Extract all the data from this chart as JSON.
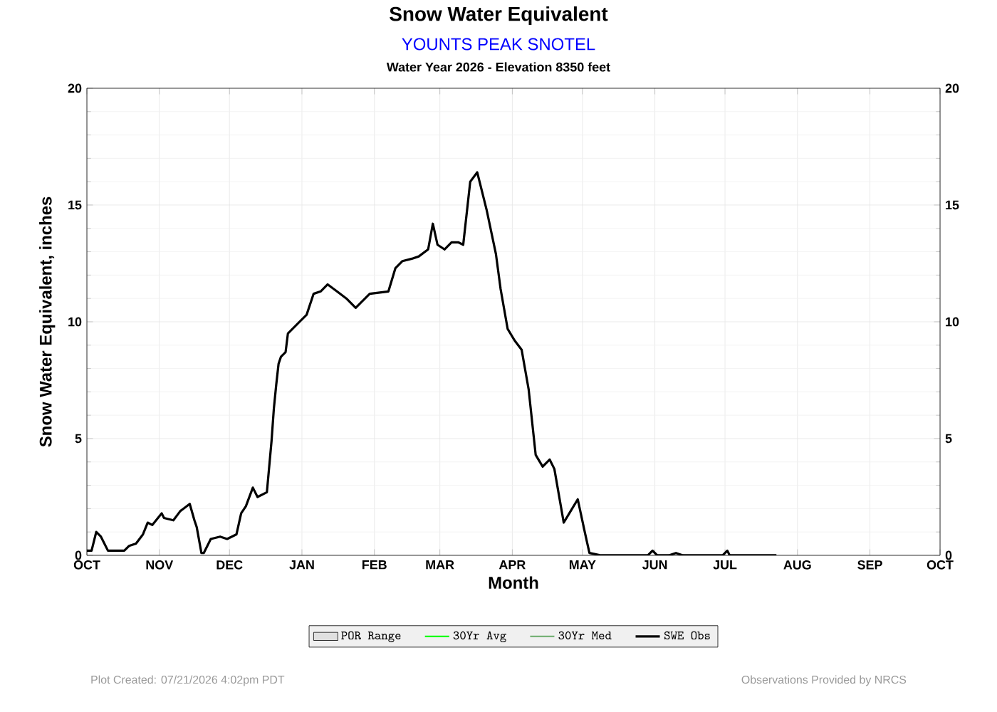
{
  "chart_data": {
    "type": "line",
    "title": "Snow Water Equivalent",
    "subtitle": "YOUNTS PEAK SNOTEL",
    "annotations": [
      "Water Year 2026 -  Elevation 8350 feet",
      "Plot Created: 07/21/2026 4:02pm PDT",
      "Observations Provided by NRCS"
    ],
    "xlabel": "Month",
    "ylabel": "Snow Water Equivalent, inches",
    "xlim": [
      "2025-10-01",
      "2026-10-01"
    ],
    "xticks": [
      {
        "value": "2025-10-01",
        "label": "OCT"
      },
      {
        "value": "2025-11-01",
        "label": "NOV"
      },
      {
        "value": "2025-12-01",
        "label": "DEC"
      },
      {
        "value": "2026-01-01",
        "label": "JAN"
      },
      {
        "value": "2026-02-01",
        "label": "FEB"
      },
      {
        "value": "2026-03-01",
        "label": "MAR"
      },
      {
        "value": "2026-04-01",
        "label": "APR"
      },
      {
        "value": "2026-05-01",
        "label": "MAY"
      },
      {
        "value": "2026-06-01",
        "label": "JUN"
      },
      {
        "value": "2026-07-01",
        "label": "JUL"
      },
      {
        "value": "2026-08-01",
        "label": "AUG"
      },
      {
        "value": "2026-09-01",
        "label": "SEP"
      },
      {
        "value": "2026-10-01",
        "label": "OCT"
      }
    ],
    "ylim": [
      0,
      20
    ],
    "yticks": [
      0,
      5,
      10,
      15,
      20
    ],
    "y2lim": [
      0,
      20
    ],
    "y2ticks": [
      0,
      5,
      10,
      15,
      20
    ],
    "grid": true,
    "legend": "bottom",
    "x": [
      "2025-10-01",
      "2025-10-03",
      "2025-10-05",
      "2025-10-07",
      "2025-10-10",
      "2025-10-17",
      "2025-10-19",
      "2025-10-22",
      "2025-10-25",
      "2025-10-27",
      "2025-10-29",
      "2025-11-02",
      "2025-11-03",
      "2025-11-07",
      "2025-11-10",
      "2025-11-14",
      "2025-11-16",
      "2025-11-17",
      "2025-11-19",
      "2025-11-20",
      "2025-11-23",
      "2025-11-27",
      "2025-11-30",
      "2025-12-04",
      "2025-12-06",
      "2025-12-08",
      "2025-12-11",
      "2025-12-13",
      "2025-12-17",
      "2025-12-19",
      "2025-12-20",
      "2025-12-21",
      "2025-12-22",
      "2025-12-23",
      "2025-12-25",
      "2025-12-26",
      "2025-12-31",
      "2026-01-03",
      "2026-01-06",
      "2026-01-09",
      "2026-01-12",
      "2026-01-16",
      "2026-01-20",
      "2026-01-24",
      "2026-01-30",
      "2026-02-07",
      "2026-02-10",
      "2026-02-13",
      "2026-02-17",
      "2026-02-20",
      "2026-02-24",
      "2026-02-26",
      "2026-02-28",
      "2026-03-03",
      "2026-03-06",
      "2026-03-09",
      "2026-03-11",
      "2026-03-14",
      "2026-03-17",
      "2026-03-21",
      "2026-03-25",
      "2026-03-27",
      "2026-03-30",
      "2026-04-02",
      "2026-04-05",
      "2026-04-08",
      "2026-04-11",
      "2026-04-14",
      "2026-04-17",
      "2026-04-19",
      "2026-04-23",
      "2026-04-26",
      "2026-04-29",
      "2026-05-02",
      "2026-05-04",
      "2026-05-09",
      "2026-05-14",
      "2026-05-29",
      "2026-05-31",
      "2026-06-02",
      "2026-06-07",
      "2026-06-10",
      "2026-06-13",
      "2026-06-30",
      "2026-07-02",
      "2026-07-03",
      "2026-07-23"
    ],
    "series": [
      {
        "name": "POR Range",
        "type": "area",
        "color": "#e0e0e0",
        "values": [
          null,
          null,
          null,
          null,
          null,
          null,
          null,
          null,
          null,
          null,
          null,
          null,
          null,
          null,
          null,
          null,
          null,
          null,
          null,
          null,
          null,
          null,
          null,
          null,
          null,
          null,
          null,
          null,
          null,
          null,
          null,
          null,
          null,
          null,
          null,
          null,
          null,
          null,
          null,
          null,
          null,
          null,
          null,
          null,
          null,
          null,
          null,
          null,
          null,
          null,
          null,
          null,
          null,
          null,
          null,
          null,
          null,
          null,
          null,
          null,
          null,
          null,
          null,
          null,
          null,
          null,
          null,
          null,
          null,
          null,
          null,
          null,
          null,
          null,
          null,
          null,
          null,
          null,
          null,
          null,
          null,
          null,
          null,
          null,
          null,
          null,
          null
        ]
      },
      {
        "name": "30Yr Avg",
        "type": "line",
        "color": "#00ff00",
        "values": [
          null,
          null,
          null,
          null,
          null,
          null,
          null,
          null,
          null,
          null,
          null,
          null,
          null,
          null,
          null,
          null,
          null,
          null,
          null,
          null,
          null,
          null,
          null,
          null,
          null,
          null,
          null,
          null,
          null,
          null,
          null,
          null,
          null,
          null,
          null,
          null,
          null,
          null,
          null,
          null,
          null,
          null,
          null,
          null,
          null,
          null,
          null,
          null,
          null,
          null,
          null,
          null,
          null,
          null,
          null,
          null,
          null,
          null,
          null,
          null,
          null,
          null,
          null,
          null,
          null,
          null,
          null,
          null,
          null,
          null,
          null,
          null,
          null,
          null,
          null,
          null,
          null,
          null,
          null,
          null,
          null,
          null,
          null,
          null,
          null,
          null,
          null
        ]
      },
      {
        "name": "30Yr Med",
        "type": "line",
        "color": "#77b277",
        "values": [
          null,
          null,
          null,
          null,
          null,
          null,
          null,
          null,
          null,
          null,
          null,
          null,
          null,
          null,
          null,
          null,
          null,
          null,
          null,
          null,
          null,
          null,
          null,
          null,
          null,
          null,
          null,
          null,
          null,
          null,
          null,
          null,
          null,
          null,
          null,
          null,
          null,
          null,
          null,
          null,
          null,
          null,
          null,
          null,
          null,
          null,
          null,
          null,
          null,
          null,
          null,
          null,
          null,
          null,
          null,
          null,
          null,
          null,
          null,
          null,
          null,
          null,
          null,
          null,
          null,
          null,
          null,
          null,
          null,
          null,
          null,
          null,
          null,
          null,
          null,
          null,
          null,
          null,
          null,
          null,
          null,
          null,
          null,
          null,
          null,
          null,
          null
        ]
      },
      {
        "name": "SWE Obs",
        "color": "#000000",
        "values": [
          0.2,
          0.2,
          1.0,
          0.8,
          0.2,
          0.2,
          0.4,
          0.5,
          0.9,
          1.4,
          1.3,
          1.8,
          1.6,
          1.5,
          1.9,
          2.2,
          1.5,
          1.2,
          0.1,
          0.1,
          0.7,
          0.8,
          0.7,
          0.9,
          1.8,
          2.1,
          2.9,
          2.5,
          2.7,
          4.9,
          6.3,
          7.3,
          8.2,
          8.5,
          8.7,
          9.5,
          10.0,
          10.3,
          11.2,
          11.3,
          11.6,
          11.3,
          11.0,
          10.6,
          11.2,
          11.3,
          12.3,
          12.6,
          12.7,
          12.8,
          13.1,
          14.2,
          13.3,
          13.1,
          13.4,
          13.4,
          13.3,
          16.0,
          16.4,
          14.8,
          12.9,
          11.4,
          9.7,
          9.2,
          8.8,
          7.1,
          4.3,
          3.8,
          4.1,
          3.7,
          1.4,
          1.9,
          2.4,
          1.0,
          0.1,
          0,
          0,
          0,
          0.2,
          0,
          0,
          0.1,
          0,
          0,
          0.2,
          0,
          0
        ]
      }
    ]
  }
}
